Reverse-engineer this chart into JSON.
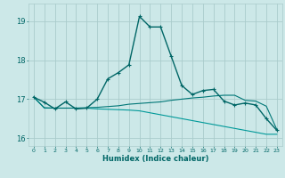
{
  "xlabel": "Humidex (Indice chaleur)",
  "background_color": "#cce8e8",
  "grid_color": "#aacccc",
  "line_color1": "#006666",
  "line_color2": "#007777",
  "line_color3": "#009999",
  "xlim": [
    -0.5,
    23.5
  ],
  "ylim": [
    15.8,
    19.45
  ],
  "yticks": [
    16,
    17,
    18,
    19
  ],
  "xticks": [
    0,
    1,
    2,
    3,
    4,
    5,
    6,
    7,
    8,
    9,
    10,
    11,
    12,
    13,
    14,
    15,
    16,
    17,
    18,
    19,
    20,
    21,
    22,
    23
  ],
  "series1_x": [
    0,
    1,
    2,
    3,
    4,
    5,
    6,
    7,
    8,
    9,
    10,
    11,
    12,
    13,
    14,
    15,
    16,
    17,
    18,
    19,
    20,
    21,
    22,
    23
  ],
  "series1_y": [
    17.05,
    16.92,
    16.75,
    16.93,
    16.75,
    16.77,
    17.0,
    17.52,
    17.68,
    17.88,
    19.12,
    18.85,
    18.85,
    18.1,
    17.35,
    17.12,
    17.22,
    17.25,
    16.95,
    16.85,
    16.9,
    16.85,
    16.5,
    16.2
  ],
  "series2_x": [
    0,
    1,
    2,
    3,
    4,
    5,
    6,
    7,
    8,
    9,
    10,
    11,
    12,
    13,
    14,
    15,
    16,
    17,
    18,
    19,
    20,
    21,
    22,
    23
  ],
  "series2_y": [
    17.05,
    16.78,
    16.77,
    16.77,
    16.77,
    16.78,
    16.79,
    16.81,
    16.83,
    16.87,
    16.89,
    16.91,
    16.93,
    16.97,
    17.0,
    17.03,
    17.05,
    17.08,
    17.1,
    17.1,
    16.97,
    16.95,
    16.82,
    16.22
  ],
  "series3_x": [
    0,
    1,
    2,
    3,
    4,
    5,
    6,
    7,
    8,
    9,
    10,
    11,
    12,
    13,
    14,
    15,
    16,
    17,
    18,
    19,
    20,
    21,
    22,
    23
  ],
  "series3_y": [
    17.05,
    16.77,
    16.77,
    16.77,
    16.77,
    16.77,
    16.75,
    16.74,
    16.73,
    16.72,
    16.7,
    16.65,
    16.6,
    16.55,
    16.5,
    16.45,
    16.4,
    16.35,
    16.3,
    16.25,
    16.2,
    16.15,
    16.1,
    16.1
  ]
}
